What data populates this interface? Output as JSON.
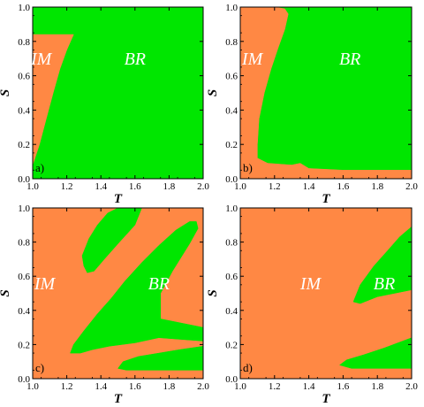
{
  "colors": {
    "IM": "#FF8844",
    "BR": "#00E600",
    "axis": "#000000",
    "background": "#FFFFFF"
  },
  "chart_data": [
    {
      "type": "heatmap",
      "panel_label": "a)",
      "xlabel": "T",
      "ylabel": "S",
      "xlim": [
        1.0,
        2.0
      ],
      "ylim": [
        0.0,
        1.0
      ],
      "xticks": [
        "1.0",
        "1.2",
        "1.4",
        "1.6",
        "1.8",
        "2.0"
      ],
      "yticks": [
        "0.0",
        "0.2",
        "0.4",
        "0.6",
        "0.8",
        "1.0"
      ],
      "background_region": "BR",
      "regions": [
        {
          "name": "IM",
          "label_at": [
            1.05,
            0.7
          ],
          "points": [
            [
              1.0,
              0.08
            ],
            [
              1.04,
              0.2
            ],
            [
              1.08,
              0.35
            ],
            [
              1.12,
              0.5
            ],
            [
              1.16,
              0.64
            ],
            [
              1.2,
              0.75
            ],
            [
              1.24,
              0.84
            ],
            [
              1.0,
              0.84
            ]
          ]
        }
      ],
      "labels": [
        {
          "text": "IM",
          "region": "IM",
          "at": [
            1.05,
            0.7
          ]
        },
        {
          "text": "BR",
          "region": "BR",
          "at": [
            1.6,
            0.7
          ]
        }
      ]
    },
    {
      "type": "heatmap",
      "panel_label": "b)",
      "xlabel": "T",
      "ylabel": "S",
      "xlim": [
        1.0,
        2.0
      ],
      "ylim": [
        0.0,
        1.0
      ],
      "xticks": [
        "1.0",
        "1.2",
        "1.4",
        "1.6",
        "1.8",
        "2.0"
      ],
      "yticks": [
        "0.0",
        "0.2",
        "0.4",
        "0.6",
        "0.8",
        "1.0"
      ],
      "background_region": "BR",
      "regions": [
        {
          "name": "IM",
          "label_at": [
            1.07,
            0.7
          ],
          "points": [
            [
              1.0,
              0.0
            ],
            [
              2.0,
              0.0
            ],
            [
              2.0,
              0.05
            ],
            [
              1.6,
              0.05
            ],
            [
              1.4,
              0.06
            ],
            [
              1.35,
              0.09
            ],
            [
              1.3,
              0.08
            ],
            [
              1.16,
              0.09
            ],
            [
              1.1,
              0.12
            ],
            [
              1.1,
              0.2
            ],
            [
              1.11,
              0.35
            ],
            [
              1.14,
              0.5
            ],
            [
              1.18,
              0.64
            ],
            [
              1.22,
              0.76
            ],
            [
              1.26,
              0.87
            ],
            [
              1.28,
              0.96
            ],
            [
              1.26,
              0.99
            ],
            [
              1.2,
              1.0
            ],
            [
              1.0,
              1.0
            ]
          ]
        }
      ],
      "labels": [
        {
          "text": "IM",
          "region": "IM",
          "at": [
            1.07,
            0.7
          ]
        },
        {
          "text": "BR",
          "region": "BR",
          "at": [
            1.64,
            0.7
          ]
        }
      ]
    },
    {
      "type": "heatmap",
      "panel_label": "c)",
      "xlabel": "T",
      "ylabel": "S",
      "xlim": [
        1.0,
        2.0
      ],
      "ylim": [
        0.0,
        1.0
      ],
      "xticks": [
        "1.0",
        "1.2",
        "1.4",
        "1.6",
        "1.8",
        "2.0"
      ],
      "yticks": [
        "0.0",
        "0.2",
        "0.4",
        "0.6",
        "0.8",
        "1.0"
      ],
      "background_region": "IM",
      "regions": [
        {
          "name": "BR",
          "label_at": [
            1.74,
            0.6
          ],
          "points": [
            [
              1.22,
              0.15
            ],
            [
              1.24,
              0.2
            ],
            [
              1.3,
              0.28
            ],
            [
              1.38,
              0.38
            ],
            [
              1.46,
              0.47
            ],
            [
              1.54,
              0.57
            ],
            [
              1.64,
              0.68
            ],
            [
              1.74,
              0.78
            ],
            [
              1.84,
              0.87
            ],
            [
              1.92,
              0.92
            ],
            [
              1.96,
              0.92
            ],
            [
              1.97,
              0.88
            ],
            [
              1.92,
              0.79
            ],
            [
              1.82,
              0.63
            ],
            [
              1.75,
              0.5
            ],
            [
              1.75,
              0.35
            ],
            [
              2.0,
              0.3
            ],
            [
              2.0,
              0.22
            ],
            [
              1.74,
              0.24
            ],
            [
              1.6,
              0.21
            ],
            [
              1.45,
              0.19
            ],
            [
              1.35,
              0.17
            ],
            [
              1.28,
              0.15
            ]
          ]
        },
        {
          "name": "BR",
          "label_at": null,
          "points": [
            [
              1.3,
              0.66
            ],
            [
              1.29,
              0.72
            ],
            [
              1.33,
              0.82
            ],
            [
              1.38,
              0.9
            ],
            [
              1.44,
              0.97
            ],
            [
              1.5,
              1.0
            ],
            [
              1.64,
              1.0
            ],
            [
              1.6,
              0.9
            ],
            [
              1.5,
              0.79
            ],
            [
              1.42,
              0.7
            ],
            [
              1.36,
              0.63
            ],
            [
              1.32,
              0.62
            ]
          ]
        },
        {
          "name": "BR",
          "label_at": null,
          "points": [
            [
              1.5,
              0.06
            ],
            [
              1.53,
              0.1
            ],
            [
              1.62,
              0.13
            ],
            [
              1.74,
              0.15
            ],
            [
              1.86,
              0.17
            ],
            [
              2.0,
              0.19
            ],
            [
              2.0,
              0.05
            ],
            [
              1.8,
              0.05
            ],
            [
              1.65,
              0.05
            ],
            [
              1.55,
              0.05
            ]
          ]
        }
      ],
      "labels": [
        {
          "text": "IM",
          "region": "IM",
          "at": [
            1.07,
            0.56
          ]
        },
        {
          "text": "BR",
          "region": "BR",
          "at": [
            1.74,
            0.56
          ]
        }
      ]
    },
    {
      "type": "heatmap",
      "panel_label": "d)",
      "xlabel": "T",
      "ylabel": "S",
      "xlim": [
        1.0,
        2.0
      ],
      "ylim": [
        0.0,
        1.0
      ],
      "xticks": [
        "1.0",
        "1.2",
        "1.4",
        "1.6",
        "1.8",
        "2.0"
      ],
      "yticks": [
        "0.0",
        "0.2",
        "0.4",
        "0.6",
        "0.8",
        "1.0"
      ],
      "background_region": "IM",
      "regions": [
        {
          "name": "BR",
          "label_at": [
            1.84,
            0.56
          ],
          "points": [
            [
              1.66,
              0.45
            ],
            [
              1.7,
              0.55
            ],
            [
              1.78,
              0.66
            ],
            [
              1.86,
              0.75
            ],
            [
              1.93,
              0.83
            ],
            [
              2.0,
              0.89
            ],
            [
              2.0,
              0.52
            ],
            [
              1.8,
              0.48
            ],
            [
              1.7,
              0.44
            ]
          ]
        },
        {
          "name": "BR",
          "label_at": null,
          "points": [
            [
              1.58,
              0.08
            ],
            [
              1.62,
              0.11
            ],
            [
              1.72,
              0.14
            ],
            [
              1.84,
              0.18
            ],
            [
              2.0,
              0.24
            ],
            [
              2.0,
              0.06
            ],
            [
              1.8,
              0.06
            ],
            [
              1.65,
              0.06
            ]
          ]
        }
      ],
      "labels": [
        {
          "text": "IM",
          "region": "IM",
          "at": [
            1.41,
            0.56
          ]
        },
        {
          "text": "BR",
          "region": "BR",
          "at": [
            1.84,
            0.56
          ]
        }
      ]
    }
  ]
}
